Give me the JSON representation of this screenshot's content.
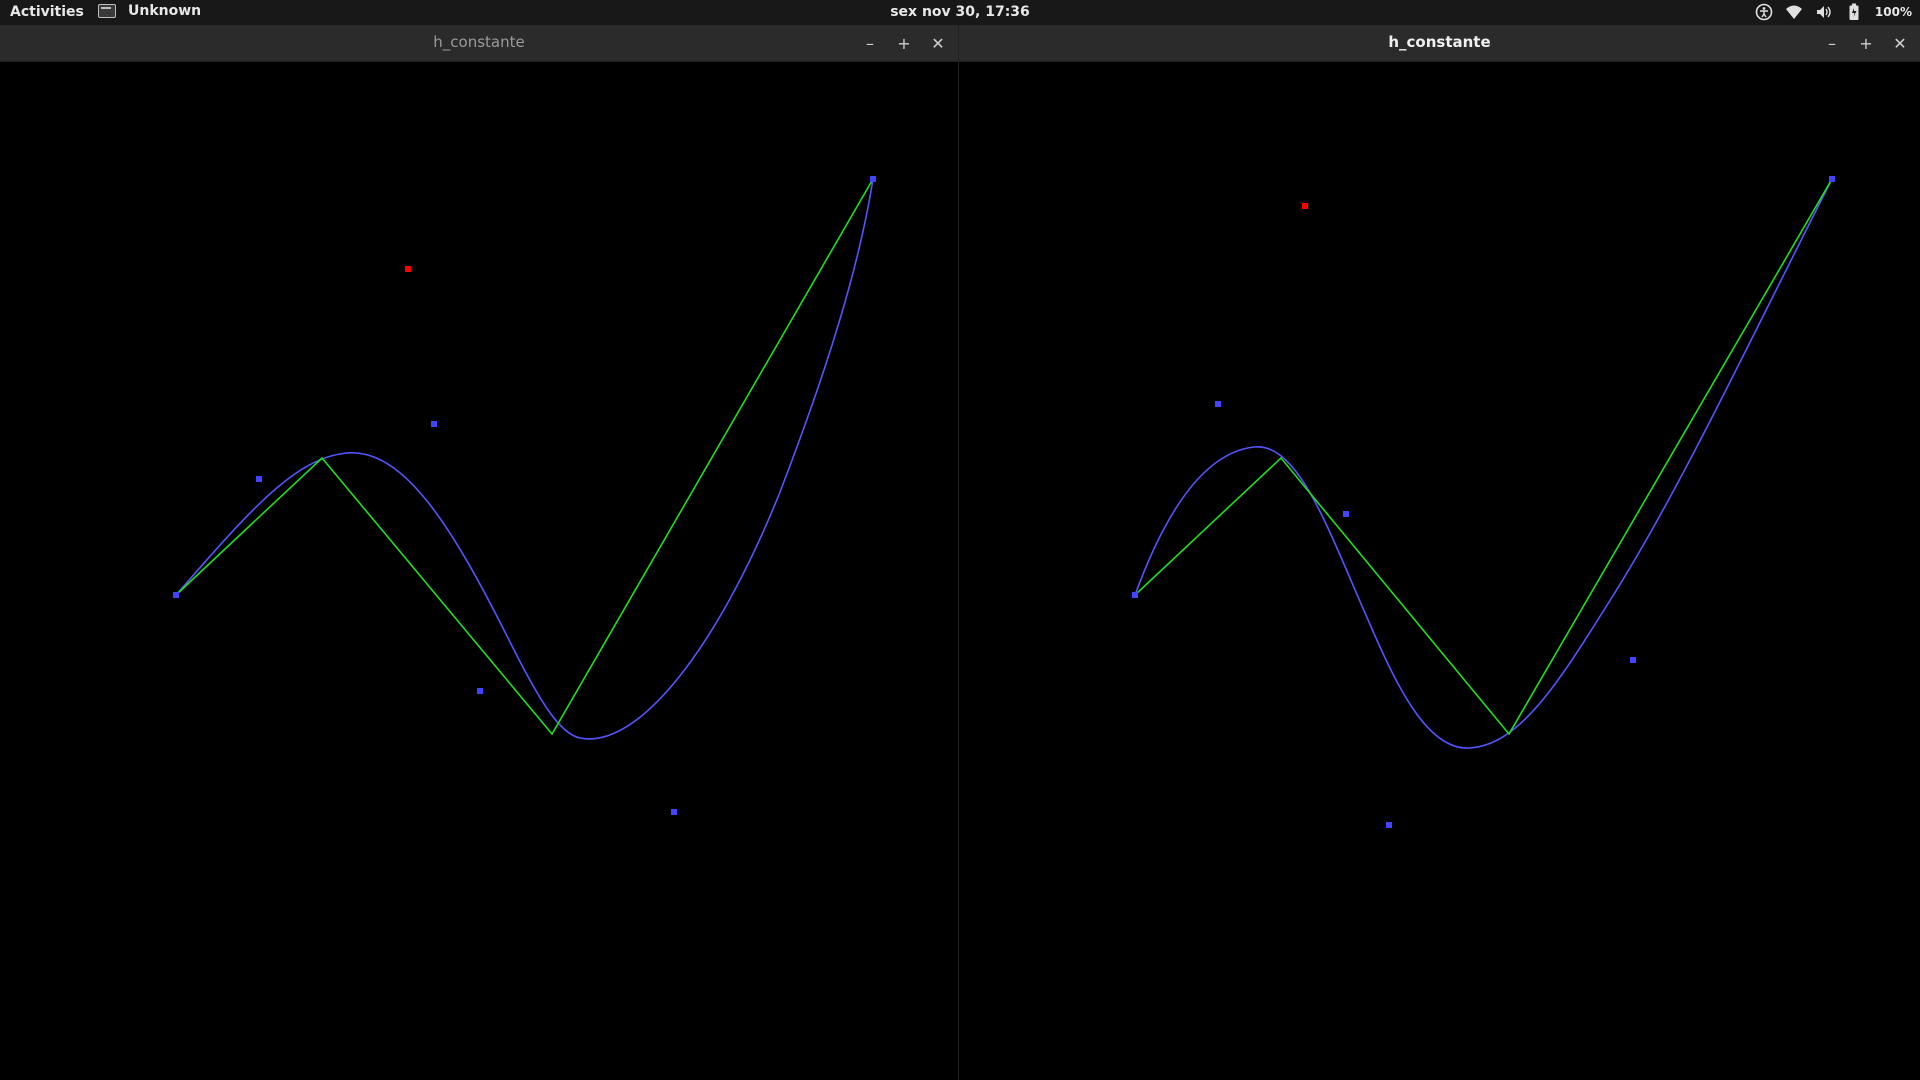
{
  "topbar": {
    "activities_label": "Activities",
    "app_name": "Unknown",
    "clock": "sex nov 30, 17:36",
    "battery_label": "100%",
    "icons": [
      "accessibility-icon",
      "wifi-icon",
      "volume-icon",
      "battery-icon"
    ]
  },
  "windows": [
    {
      "title": "h_constante",
      "controls": {
        "minimize": "–",
        "maximize": "+",
        "close": "✕"
      },
      "focused": false
    },
    {
      "title": "h_constante",
      "controls": {
        "minimize": "–",
        "maximize": "+",
        "close": "✕"
      },
      "focused": true
    }
  ],
  "colors": {
    "background": "#000000",
    "curve": "#5555ff",
    "polyline": "#22dd22",
    "control_point": "#4444ff",
    "marker": "#ff0000"
  }
}
